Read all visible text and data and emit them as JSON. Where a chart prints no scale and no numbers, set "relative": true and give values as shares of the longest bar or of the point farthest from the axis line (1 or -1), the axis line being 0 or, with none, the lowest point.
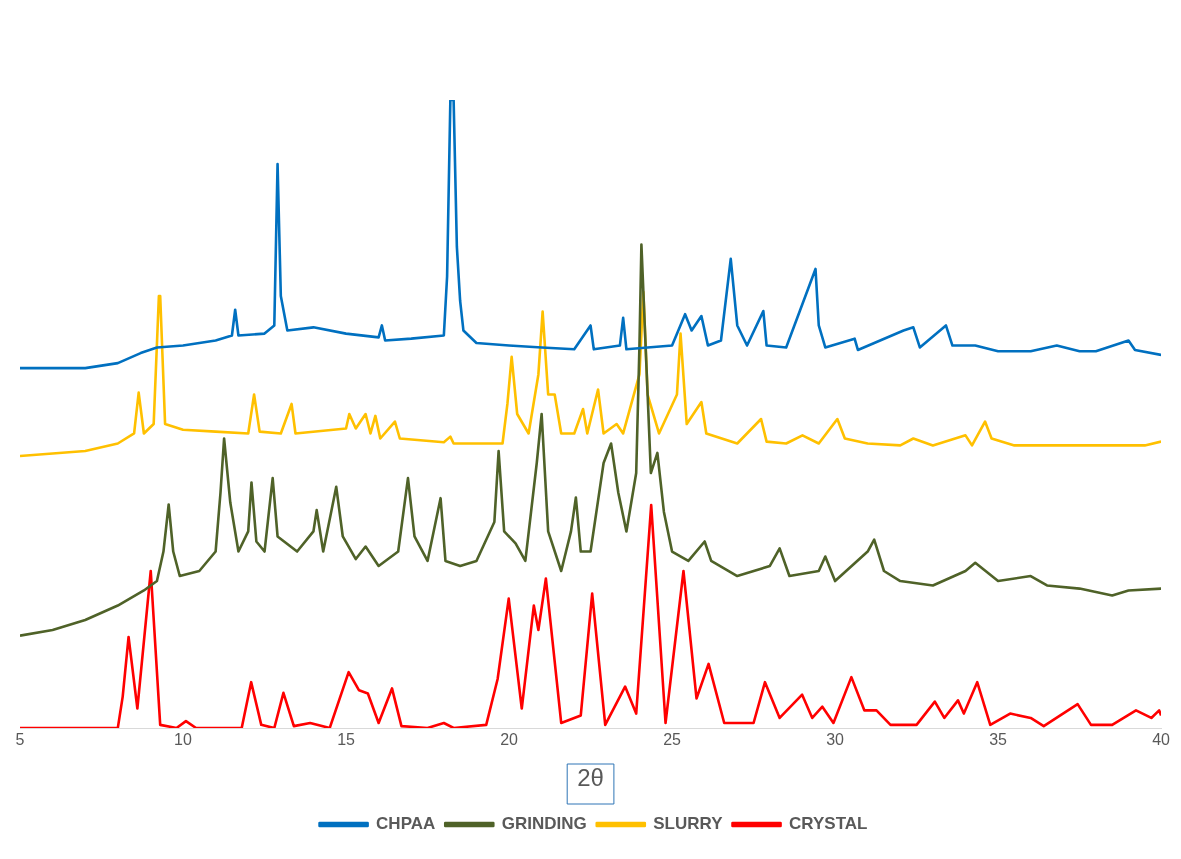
{
  "chart_data": {
    "type": "line",
    "xlabel": "2θ",
    "relative": true,
    "xlim": [
      5,
      40
    ],
    "xticks": [
      5,
      10,
      15,
      20,
      25,
      30,
      35,
      40
    ],
    "legend": "bottom",
    "grid": false,
    "marker": "none",
    "line_style": "solid",
    "series": [
      {
        "name": "CHPAA",
        "color": "#0070c0",
        "x": [
          5,
          7,
          8,
          8.7,
          9.2,
          10,
          11,
          11.5,
          11.6,
          11.7,
          12.5,
          12.8,
          12.9,
          13.0,
          13.2,
          14,
          15,
          16,
          16.1,
          16.2,
          17,
          18,
          18.1,
          18.2,
          18.3,
          18.4,
          18.5,
          18.6,
          19,
          20,
          21,
          22,
          22.5,
          22.6,
          23.4,
          23.5,
          23.6,
          25,
          25.4,
          25.6,
          25.9,
          26.1,
          26.5,
          26.8,
          27,
          27.3,
          27.8,
          27.9,
          28.5,
          29.4,
          29.5,
          29.7,
          30.6,
          30.7,
          32.1,
          32.4,
          32.6,
          33.4,
          33.6,
          34.3,
          35,
          36,
          36.8,
          37.5,
          38,
          39,
          39.2,
          40
        ],
        "values": [
          0.573,
          0.573,
          0.581,
          0.597,
          0.606,
          0.609,
          0.617,
          0.625,
          0.666,
          0.625,
          0.628,
          0.641,
          0.898,
          0.688,
          0.633,
          0.638,
          0.628,
          0.622,
          0.641,
          0.617,
          0.62,
          0.625,
          0.719,
          1,
          1,
          0.766,
          0.68,
          0.633,
          0.613,
          0.609,
          0.606,
          0.603,
          0.641,
          0.603,
          0.609,
          0.653,
          0.603,
          0.609,
          0.659,
          0.633,
          0.656,
          0.609,
          0.617,
          0.747,
          0.641,
          0.609,
          0.664,
          0.609,
          0.606,
          0.731,
          0.641,
          0.606,
          0.62,
          0.602,
          0.633,
          0.638,
          0.606,
          0.641,
          0.609,
          0.609,
          0.6,
          0.6,
          0.609,
          0.6,
          0.6,
          0.617,
          0.602,
          0.594
        ]
      },
      {
        "name": "GRINDING",
        "color": "#4f6228",
        "x": [
          5,
          6,
          7,
          8,
          8.8,
          9.2,
          9.4,
          9.56,
          9.7,
          9.9,
          10.5,
          11,
          11.15,
          11.26,
          11.45,
          11.7,
          12,
          12.1,
          12.25,
          12.5,
          12.75,
          12.9,
          13.5,
          14,
          14.1,
          14.3,
          14.7,
          14.9,
          15.3,
          15.6,
          16,
          16.6,
          16.9,
          17.1,
          17.5,
          17.9,
          18.05,
          18.5,
          19,
          19.55,
          19.68,
          19.85,
          20.2,
          20.5,
          20.85,
          21.0,
          21.2,
          21.6,
          21.9,
          22.05,
          22.2,
          22.5,
          22.9,
          23.13,
          23.35,
          23.6,
          23.9,
          24.0,
          24.06,
          24.25,
          24.35,
          24.55,
          24.75,
          25,
          25.5,
          26,
          26.2,
          27,
          28,
          28.3,
          28.6,
          29.5,
          29.7,
          30,
          31,
          31.2,
          31.5,
          32,
          33,
          34,
          34.3,
          35,
          36,
          36.5,
          37.5,
          38.5,
          39,
          40
        ],
        "values": [
          0.147,
          0.156,
          0.172,
          0.195,
          0.219,
          0.234,
          0.281,
          0.356,
          0.281,
          0.242,
          0.25,
          0.281,
          0.375,
          0.461,
          0.359,
          0.281,
          0.313,
          0.391,
          0.297,
          0.281,
          0.398,
          0.305,
          0.281,
          0.313,
          0.347,
          0.281,
          0.384,
          0.305,
          0.269,
          0.289,
          0.258,
          0.281,
          0.398,
          0.305,
          0.266,
          0.366,
          0.266,
          0.258,
          0.266,
          0.328,
          0.441,
          0.313,
          0.294,
          0.266,
          0.422,
          0.5,
          0.313,
          0.25,
          0.313,
          0.367,
          0.281,
          0.281,
          0.422,
          0.453,
          0.375,
          0.313,
          0.406,
          0.609,
          0.77,
          0.531,
          0.406,
          0.438,
          0.344,
          0.281,
          0.266,
          0.297,
          0.266,
          0.242,
          0.258,
          0.286,
          0.242,
          0.25,
          0.273,
          0.234,
          0.281,
          0.3,
          0.25,
          0.234,
          0.227,
          0.25,
          0.263,
          0.234,
          0.242,
          0.227,
          0.222,
          0.211,
          0.219,
          0.222
        ]
      },
      {
        "name": "SLURRY",
        "color": "#ffc000",
        "x": [
          5,
          7,
          8,
          8.5,
          8.64,
          8.8,
          9.1,
          9.26,
          9.3,
          9.45,
          10,
          11,
          12,
          12.18,
          12.35,
          13,
          13.33,
          13.45,
          15,
          15.1,
          15.3,
          15.6,
          15.75,
          15.9,
          16.05,
          16.5,
          16.65,
          18,
          18.2,
          18.3,
          19.8,
          19.95,
          20.08,
          20.25,
          20.6,
          20.9,
          21.03,
          21.2,
          21.4,
          21.6,
          22,
          22.27,
          22.4,
          22.73,
          22.9,
          23.3,
          23.5,
          24,
          24.12,
          24.25,
          24.6,
          25.15,
          25.26,
          25.45,
          25.9,
          26.05,
          27,
          27.73,
          27.9,
          28.5,
          29,
          29.5,
          30.07,
          30.3,
          31,
          32,
          32.4,
          33,
          34,
          34.2,
          34.6,
          34.8,
          35.5,
          36.5,
          38,
          39.5,
          40
        ],
        "values": [
          0.433,
          0.441,
          0.453,
          0.469,
          0.534,
          0.469,
          0.484,
          0.688,
          0.688,
          0.484,
          0.475,
          0.472,
          0.469,
          0.531,
          0.472,
          0.469,
          0.516,
          0.469,
          0.477,
          0.5,
          0.477,
          0.5,
          0.469,
          0.497,
          0.461,
          0.488,
          0.461,
          0.455,
          0.464,
          0.453,
          0.453,
          0.516,
          0.591,
          0.5,
          0.469,
          0.563,
          0.663,
          0.531,
          0.531,
          0.469,
          0.469,
          0.508,
          0.469,
          0.539,
          0.469,
          0.484,
          0.469,
          0.563,
          0.694,
          0.531,
          0.469,
          0.531,
          0.628,
          0.484,
          0.519,
          0.469,
          0.453,
          0.492,
          0.456,
          0.453,
          0.466,
          0.453,
          0.492,
          0.461,
          0.453,
          0.45,
          0.461,
          0.45,
          0.466,
          0.45,
          0.488,
          0.461,
          0.45,
          0.45,
          0.45,
          0.45,
          0.456
        ]
      },
      {
        "name": "CRYSTAL",
        "color": "#ff0000",
        "x": [
          5,
          8,
          8.15,
          8.33,
          8.6,
          9.01,
          9.3,
          9.8,
          10.09,
          10.4,
          11.8,
          12.09,
          12.4,
          12.8,
          13.08,
          13.4,
          13.9,
          14.5,
          15.08,
          15.4,
          15.67,
          16,
          16.41,
          16.7,
          17.5,
          18,
          18.3,
          19.3,
          19.65,
          19.99,
          20.39,
          20.76,
          20.9,
          21.13,
          21.6,
          22.2,
          22.55,
          22.95,
          23.56,
          23.9,
          24.36,
          24.8,
          25.35,
          25.75,
          26.12,
          26.6,
          27.5,
          27.85,
          28.3,
          28.99,
          29.3,
          29.61,
          29.95,
          30.5,
          30.9,
          31.27,
          31.7,
          32.5,
          33.06,
          33.35,
          33.77,
          33.95,
          34.36,
          34.76,
          35.37,
          36,
          36.4,
          37.44,
          37.85,
          38.5,
          39.23,
          39.7,
          39.94,
          40
        ],
        "values": [
          0,
          0,
          0.05,
          0.145,
          0.031,
          0.25,
          0.005,
          0,
          0.011,
          0,
          0,
          0.073,
          0.005,
          0,
          0.056,
          0.003,
          0.008,
          0,
          0.089,
          0.06,
          0.055,
          0.008,
          0.063,
          0.003,
          0,
          0.008,
          0,
          0.005,
          0.078,
          0.206,
          0.031,
          0.195,
          0.156,
          0.238,
          0.008,
          0.02,
          0.214,
          0.005,
          0.066,
          0.023,
          0.355,
          0.008,
          0.25,
          0.047,
          0.102,
          0.008,
          0.008,
          0.073,
          0.016,
          0.053,
          0.016,
          0.034,
          0.008,
          0.081,
          0.028,
          0.028,
          0.005,
          0.005,
          0.042,
          0.016,
          0.044,
          0.023,
          0.073,
          0.005,
          0.023,
          0.016,
          0.003,
          0.038,
          0.005,
          0.005,
          0.028,
          0.016,
          0.028,
          0.02
        ]
      }
    ]
  }
}
